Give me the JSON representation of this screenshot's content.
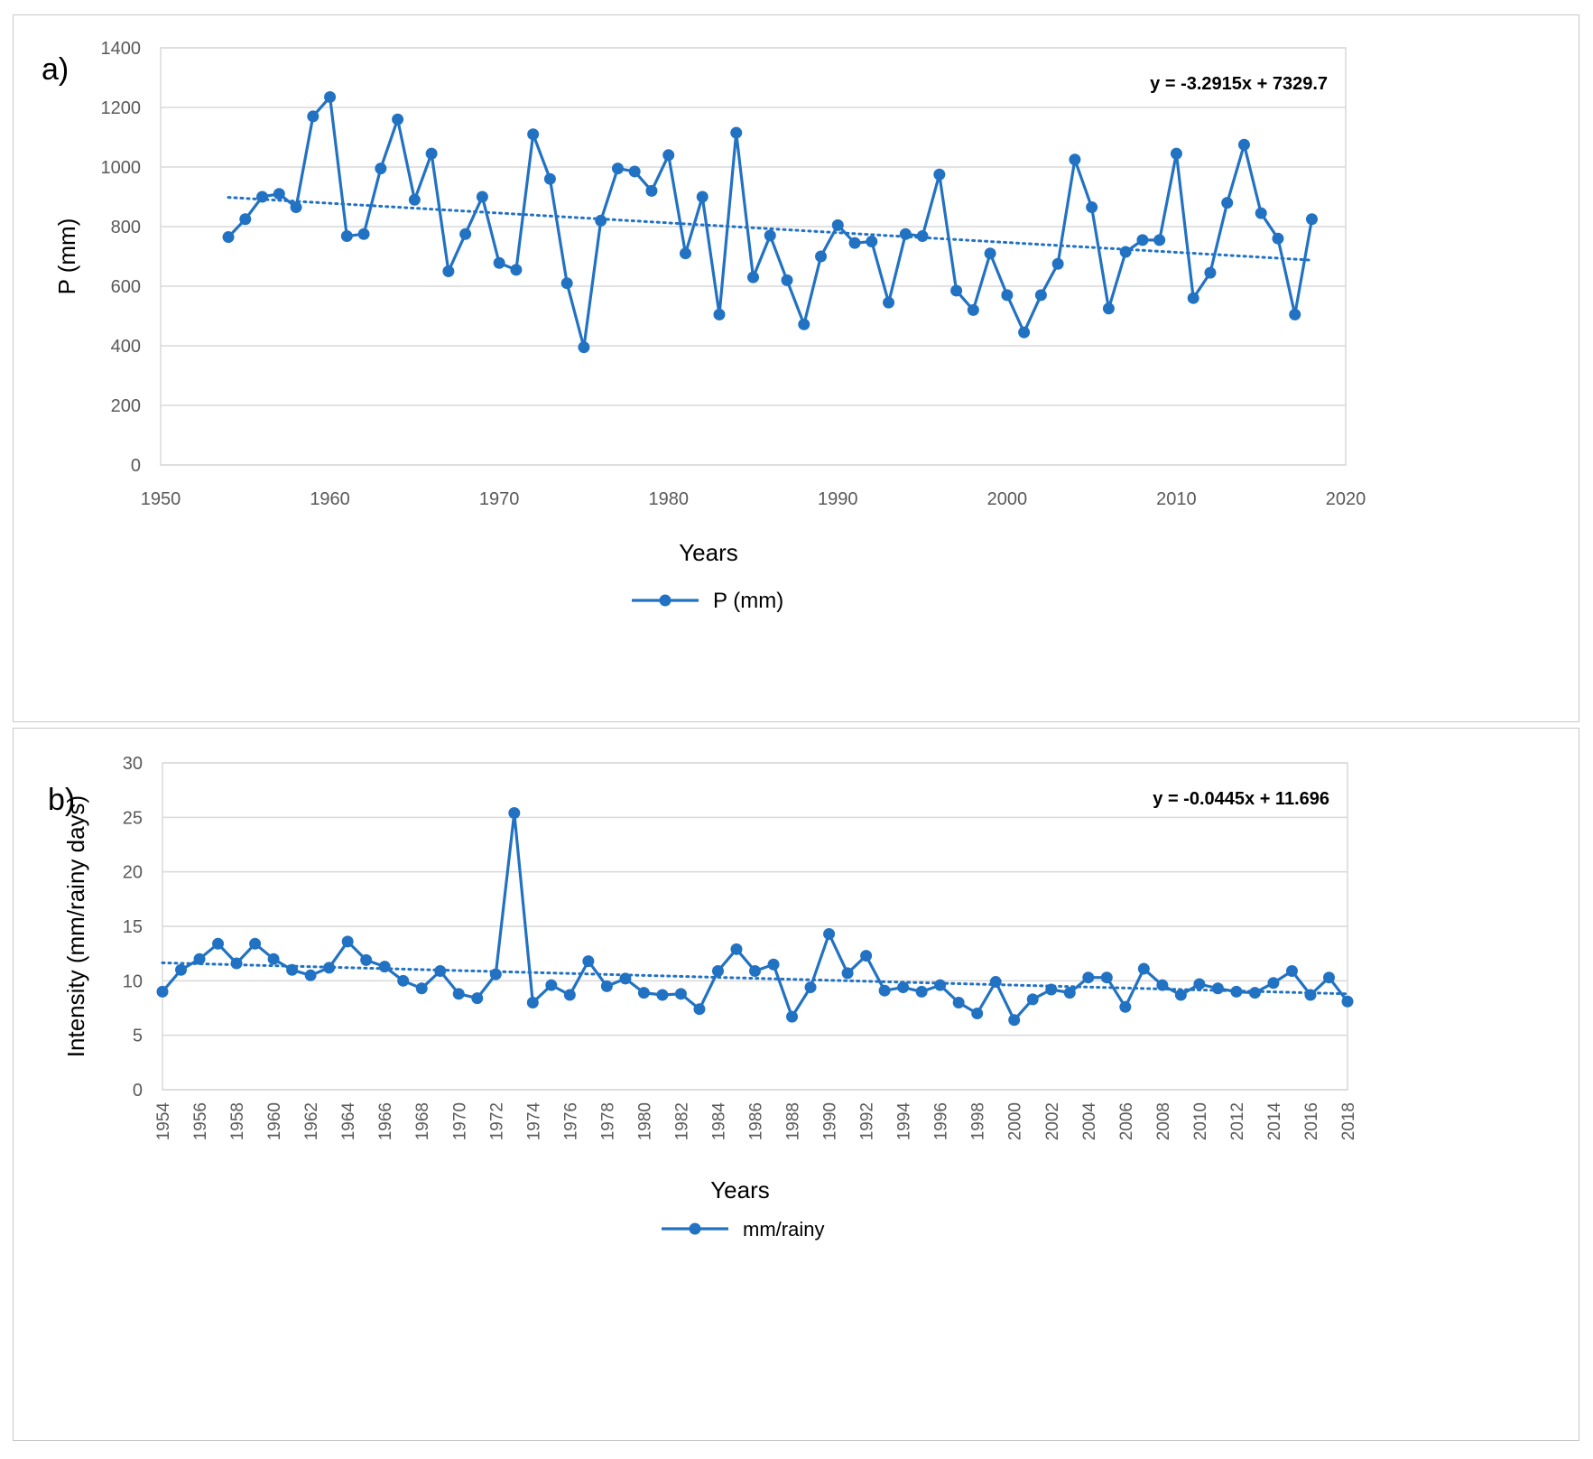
{
  "colors": {
    "series": "#2272C3",
    "grid": "#d9d9d9",
    "axis_text": "#595959",
    "text": "#000000"
  },
  "chart_data": [
    {
      "type": "line",
      "panel_label": "a)",
      "xlabel": "Years",
      "ylabel": "P (mm)",
      "xlim": [
        1950,
        2020
      ],
      "xticks": [
        1950,
        1960,
        1970,
        1980,
        1990,
        2000,
        2010,
        2020
      ],
      "ylim": [
        0,
        1400
      ],
      "yticks": [
        0,
        200,
        400,
        600,
        800,
        1000,
        1200,
        1400
      ],
      "grid": "horizontal",
      "legend_position": "bottom",
      "trend_equation": "y = -3.2915x + 7329.7",
      "trend": {
        "slope": -3.2915,
        "intercept": 7329.7,
        "x_start": 1954,
        "x_end": 2018
      },
      "series": [
        {
          "name": "P (mm)",
          "x": [
            1954,
            1955,
            1956,
            1957,
            1958,
            1959,
            1960,
            1961,
            1962,
            1963,
            1964,
            1965,
            1966,
            1967,
            1968,
            1969,
            1970,
            1971,
            1972,
            1973,
            1974,
            1975,
            1976,
            1977,
            1978,
            1979,
            1980,
            1981,
            1982,
            1983,
            1984,
            1985,
            1986,
            1987,
            1988,
            1989,
            1990,
            1991,
            1992,
            1993,
            1994,
            1995,
            1996,
            1997,
            1998,
            1999,
            2000,
            2001,
            2002,
            2003,
            2004,
            2005,
            2006,
            2007,
            2008,
            2009,
            2010,
            2011,
            2012,
            2013,
            2014,
            2015,
            2016,
            2017,
            2018
          ],
          "y": [
            765,
            825,
            900,
            910,
            865,
            1170,
            1235,
            768,
            775,
            995,
            1160,
            890,
            1045,
            650,
            775,
            900,
            678,
            655,
            1110,
            960,
            610,
            395,
            820,
            995,
            985,
            920,
            1040,
            710,
            900,
            505,
            1115,
            630,
            770,
            620,
            472,
            700,
            805,
            745,
            750,
            545,
            775,
            768,
            975,
            585,
            520,
            710,
            570,
            445,
            570,
            675,
            1025,
            865,
            525,
            715,
            755,
            755,
            1045,
            560,
            645,
            880,
            1075,
            845,
            760,
            505,
            825
          ]
        }
      ]
    },
    {
      "type": "line",
      "panel_label": "b)",
      "xlabel": "Years",
      "ylabel": "Intensity (mm/rainy days)",
      "xlim": [
        1954,
        2018
      ],
      "xticks": [
        1954,
        1956,
        1958,
        1960,
        1962,
        1964,
        1966,
        1968,
        1970,
        1972,
        1974,
        1976,
        1978,
        1980,
        1982,
        1984,
        1986,
        1988,
        1990,
        1992,
        1994,
        1996,
        1998,
        2000,
        2002,
        2004,
        2006,
        2008,
        2010,
        2012,
        2014,
        2016,
        2018
      ],
      "ylim": [
        0,
        30
      ],
      "yticks": [
        0,
        5,
        10,
        15,
        20,
        25,
        30
      ],
      "grid": "horizontal",
      "legend_position": "bottom",
      "trend_equation": "y = -0.0445x + 11.696",
      "trend": {
        "slope": -0.0445,
        "intercept": 11.696,
        "x_start": 1954,
        "x_end": 2018,
        "index_based": true
      },
      "series": [
        {
          "name": "mm/rainy",
          "x": [
            1954,
            1955,
            1956,
            1957,
            1958,
            1959,
            1960,
            1961,
            1962,
            1963,
            1964,
            1965,
            1966,
            1967,
            1968,
            1969,
            1970,
            1971,
            1972,
            1973,
            1974,
            1975,
            1976,
            1977,
            1978,
            1979,
            1980,
            1981,
            1982,
            1983,
            1984,
            1985,
            1986,
            1987,
            1988,
            1989,
            1990,
            1991,
            1992,
            1993,
            1994,
            1995,
            1996,
            1997,
            1998,
            1999,
            2000,
            2001,
            2002,
            2003,
            2004,
            2005,
            2006,
            2007,
            2008,
            2009,
            2010,
            2011,
            2012,
            2013,
            2014,
            2015,
            2016,
            2017,
            2018
          ],
          "y": [
            9.0,
            11.0,
            12.0,
            13.4,
            11.6,
            13.4,
            12.0,
            11.0,
            10.5,
            11.2,
            13.6,
            11.9,
            11.3,
            10.0,
            9.3,
            10.9,
            8.8,
            8.4,
            10.6,
            25.4,
            8.0,
            9.6,
            8.7,
            11.8,
            9.5,
            10.2,
            8.9,
            8.7,
            8.8,
            7.4,
            10.9,
            12.9,
            10.9,
            11.5,
            6.7,
            9.4,
            14.3,
            10.7,
            12.3,
            9.1,
            9.4,
            9.0,
            9.6,
            8.0,
            7.0,
            9.9,
            6.4,
            8.3,
            9.2,
            8.9,
            10.3,
            10.3,
            7.6,
            11.1,
            9.6,
            8.7,
            9.7,
            9.3,
            9.0,
            8.9,
            9.8,
            10.9,
            8.7,
            10.3,
            8.1
          ]
        }
      ]
    }
  ]
}
